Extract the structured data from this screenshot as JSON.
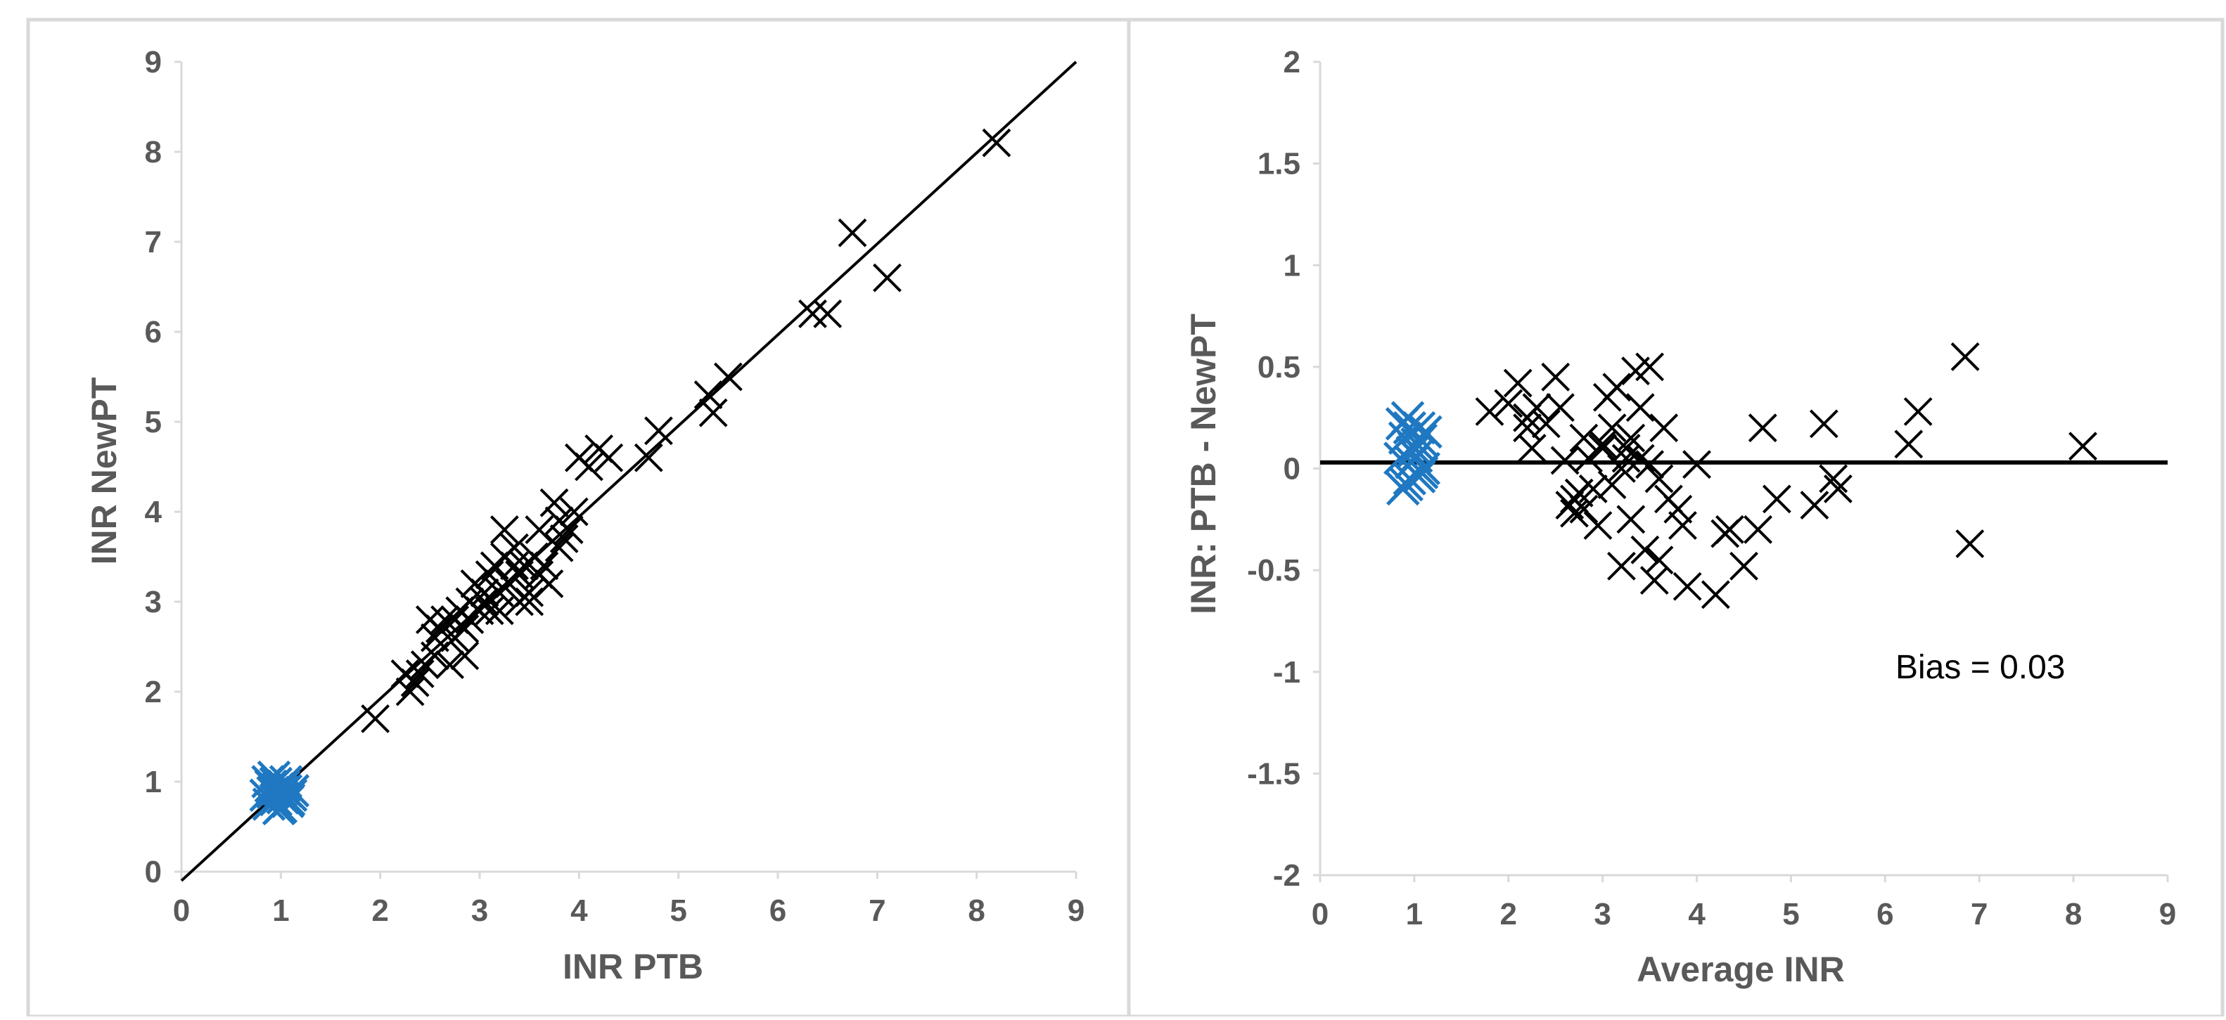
{
  "colors": {
    "marker": "#000000",
    "normal_cluster": "#1f78c1",
    "axis": "#d9d9d9",
    "text": "#595959",
    "panel_border": "#d9d9d9"
  },
  "chart_data": [
    {
      "type": "scatter",
      "title": "",
      "xlabel": "INR  PTB",
      "ylabel": "INR NewPT",
      "xlim": [
        0,
        9
      ],
      "ylim": [
        0,
        9
      ],
      "x_ticks": [
        "0",
        "1",
        "2",
        "3",
        "4",
        "5",
        "6",
        "7",
        "8",
        "9"
      ],
      "y_ticks": [
        "0",
        "1",
        "2",
        "3",
        "4",
        "5",
        "6",
        "7",
        "8",
        "9"
      ],
      "grid": false,
      "legend": "none",
      "reference_line": {
        "x": [
          0,
          9
        ],
        "y": [
          -0.1,
          9.0
        ]
      },
      "series": [
        {
          "marker": "cross",
          "x": [
            1.05,
            1.95,
            2.25,
            2.3,
            2.35,
            2.4,
            2.45,
            2.5,
            2.55,
            2.6,
            2.65,
            2.7,
            2.75,
            2.8,
            2.85,
            2.9,
            2.95,
            3.0,
            3.05,
            3.1,
            3.15,
            3.2,
            3.25,
            3.3,
            3.35,
            3.4,
            3.45,
            3.5,
            3.55,
            3.6,
            3.7,
            3.75,
            3.8,
            3.85,
            3.9,
            3.95,
            4.0,
            4.1,
            4.2,
            4.3,
            4.7,
            4.8,
            5.3,
            5.35,
            5.5,
            6.35,
            6.5,
            6.75,
            7.1,
            8.2,
            2.55,
            2.75,
            2.9,
            3.05,
            3.2,
            3.35,
            3.5,
            3.65,
            3.8,
            2.85,
            3.1,
            3.25,
            3.4,
            3.6
          ],
          "y": [
            1.0,
            1.7,
            2.2,
            2.0,
            2.1,
            2.2,
            2.3,
            2.8,
            2.4,
            2.7,
            2.8,
            2.3,
            2.6,
            2.9,
            2.4,
            3.0,
            3.2,
            2.9,
            3.0,
            3.3,
            3.4,
            3.1,
            3.5,
            3.2,
            3.6,
            3.3,
            3.4,
            3.1,
            3.5,
            3.8,
            3.2,
            4.1,
            3.9,
            3.7,
            3.8,
            4.0,
            4.6,
            4.5,
            4.7,
            4.6,
            4.6,
            4.9,
            5.3,
            5.1,
            5.5,
            6.2,
            6.2,
            7.1,
            6.6,
            8.1,
            2.6,
            2.8,
            2.8,
            3.1,
            2.9,
            3.4,
            3.0,
            3.4,
            3.6,
            2.7,
            2.9,
            3.8,
            3.0,
            3.3
          ]
        },
        {
          "marker": "cross-cluster",
          "x": [
            0.85,
            0.9,
            0.95,
            1.0,
            1.05,
            1.1,
            0.88,
            0.93,
            0.98,
            1.03,
            1.08,
            1.12,
            0.87,
            0.97,
            1.07,
            0.92,
            1.02,
            0.95,
            1.0,
            1.05
          ],
          "y": [
            0.85,
            0.95,
            0.8,
            0.9,
            1.0,
            0.85,
            0.75,
            1.05,
            0.7,
            0.95,
            0.8,
            0.9,
            1.0,
            0.92,
            0.78,
            0.88,
            0.82,
            0.98,
            0.72,
            0.9
          ]
        }
      ]
    },
    {
      "type": "scatter",
      "title": "",
      "xlabel": "Average INR",
      "ylabel": "INR:  PTB - NewPT",
      "xlim": [
        0,
        9
      ],
      "ylim": [
        -2,
        2
      ],
      "x_ticks": [
        "0",
        "1",
        "2",
        "3",
        "4",
        "5",
        "6",
        "7",
        "8",
        "9"
      ],
      "y_ticks": [
        "2",
        "1.5",
        "1",
        "0.5",
        "0",
        "-0.5",
        "-1",
        "-1.5",
        "-2"
      ],
      "grid": false,
      "legend": "none",
      "bias_line": 0.03,
      "annotation": "Bias = 0.03",
      "series": [
        {
          "marker": "cross",
          "x": [
            1.8,
            2.0,
            2.1,
            2.2,
            2.25,
            2.3,
            2.4,
            2.5,
            2.6,
            2.65,
            2.7,
            2.75,
            2.8,
            2.85,
            2.9,
            2.95,
            3.0,
            3.05,
            3.1,
            3.15,
            3.2,
            3.25,
            3.3,
            3.35,
            3.4,
            3.45,
            3.5,
            3.55,
            3.6,
            3.65,
            3.7,
            3.8,
            3.85,
            3.9,
            4.0,
            4.2,
            4.3,
            4.35,
            4.5,
            4.65,
            4.7,
            4.85,
            5.25,
            5.35,
            5.45,
            5.5,
            6.25,
            6.35,
            6.85,
            6.9,
            8.1,
            2.7,
            2.8,
            3.0,
            3.2,
            3.4,
            3.6,
            2.55,
            3.25,
            3.5,
            2.2,
            3.1,
            3.3
          ],
          "y": [
            0.28,
            0.32,
            0.42,
            0.2,
            0.1,
            0.3,
            0.22,
            0.45,
            0.04,
            -0.18,
            -0.22,
            -0.12,
            0.15,
            0.05,
            -0.1,
            -0.28,
            0.12,
            0.35,
            0.2,
            0.4,
            -0.48,
            0.1,
            -0.25,
            0.48,
            0.05,
            -0.4,
            0.5,
            -0.55,
            -0.45,
            0.2,
            -0.15,
            -0.2,
            -0.28,
            -0.58,
            0.02,
            -0.62,
            -0.32,
            -0.3,
            -0.48,
            -0.3,
            0.2,
            -0.15,
            -0.18,
            0.22,
            -0.05,
            -0.1,
            0.12,
            0.28,
            0.55,
            -0.37,
            0.11,
            -0.15,
            -0.2,
            0.1,
            0.0,
            0.3,
            -0.05,
            0.3,
            0.05,
            0.02,
            0.25,
            -0.08,
            0.15
          ]
        },
        {
          "marker": "cross-cluster",
          "x": [
            0.85,
            0.9,
            0.95,
            1.0,
            1.05,
            1.1,
            0.88,
            0.93,
            0.98,
            1.03,
            1.08,
            1.12,
            0.87,
            0.97,
            1.07,
            0.92,
            1.02,
            0.95,
            1.0,
            1.05
          ],
          "y": [
            0.05,
            0.15,
            -0.05,
            0.1,
            0.2,
            0.0,
            -0.1,
            0.25,
            0.08,
            0.12,
            -0.02,
            0.18,
            0.22,
            0.03,
            0.14,
            -0.08,
            0.06,
            0.2,
            0.1,
            -0.04
          ]
        }
      ]
    }
  ]
}
